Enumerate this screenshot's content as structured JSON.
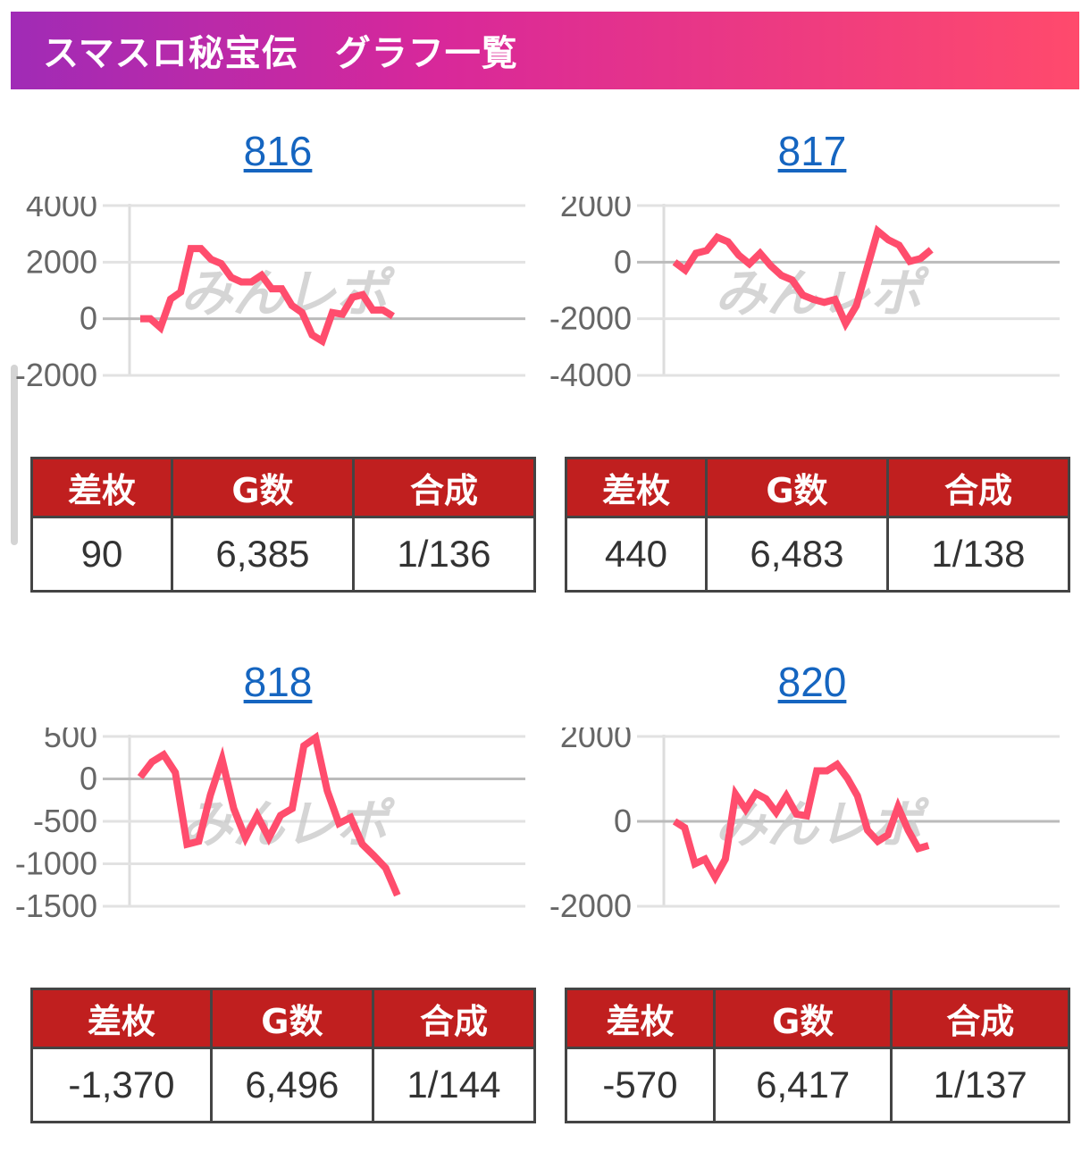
{
  "header": {
    "title": "スマスロ秘宝伝　グラフ一覧"
  },
  "colors": {
    "line": "#ff4d6d",
    "header_start": "#a02bb6",
    "header_end": "#ff4a6c",
    "table_header": "#c01f1f",
    "link": "#1565c0"
  },
  "watermark": "みんレポ",
  "columns": [
    "差枚",
    "G数",
    "合成"
  ],
  "machines": [
    {
      "number": "816",
      "diff": "90",
      "games": "6,385",
      "rate": "1/136",
      "chart_data": {
        "type": "line",
        "yticks": [
          4000,
          2000,
          0,
          -2000
        ],
        "ylim": [
          -2000,
          4000
        ],
        "values": [
          0,
          0,
          -315,
          695,
          945,
          2480,
          2480,
          2100,
          1950,
          1460,
          1300,
          1300,
          1540,
          1060,
          1060,
          470,
          220,
          -570,
          -790,
          220,
          160,
          760,
          850,
          310,
          310,
          90
        ]
      }
    },
    {
      "number": "817",
      "diff": "440",
      "games": "6,483",
      "rate": "1/138",
      "chart_data": {
        "type": "line",
        "yticks": [
          2000,
          0,
          -2000,
          -4000
        ],
        "ylim": [
          -4000,
          2000
        ],
        "values": [
          0,
          -280,
          315,
          410,
          880,
          720,
          250,
          -60,
          315,
          -125,
          -470,
          -630,
          -1165,
          -1320,
          -1420,
          -1320,
          -2170,
          -1540,
          -220,
          1100,
          790,
          600,
          30,
          125,
          440
        ]
      }
    },
    {
      "number": "818",
      "diff": "-1,370",
      "games": "6,496",
      "rate": "1/144",
      "chart_data": {
        "type": "line",
        "yticks": [
          500,
          0,
          -500,
          -1000,
          -1500
        ],
        "ylim": [
          -1500,
          500
        ],
        "values": [
          20,
          200,
          285,
          75,
          -770,
          -735,
          -190,
          230,
          -350,
          -695,
          -430,
          -695,
          -430,
          -350,
          390,
          485,
          -140,
          -525,
          -455,
          -770,
          -905,
          -1050,
          -1370
        ]
      }
    },
    {
      "number": "820",
      "diff": "-570",
      "games": "6,417",
      "rate": "1/137",
      "chart_data": {
        "type": "line",
        "yticks": [
          2000,
          0,
          -2000
        ],
        "ylim": [
          -2000,
          2000
        ],
        "values": [
          0,
          -150,
          -1000,
          -890,
          -1320,
          -890,
          640,
          280,
          660,
          530,
          210,
          600,
          170,
          130,
          1190,
          1190,
          1340,
          1020,
          600,
          -210,
          -470,
          -320,
          340,
          -210,
          -640,
          -570
        ]
      }
    }
  ]
}
